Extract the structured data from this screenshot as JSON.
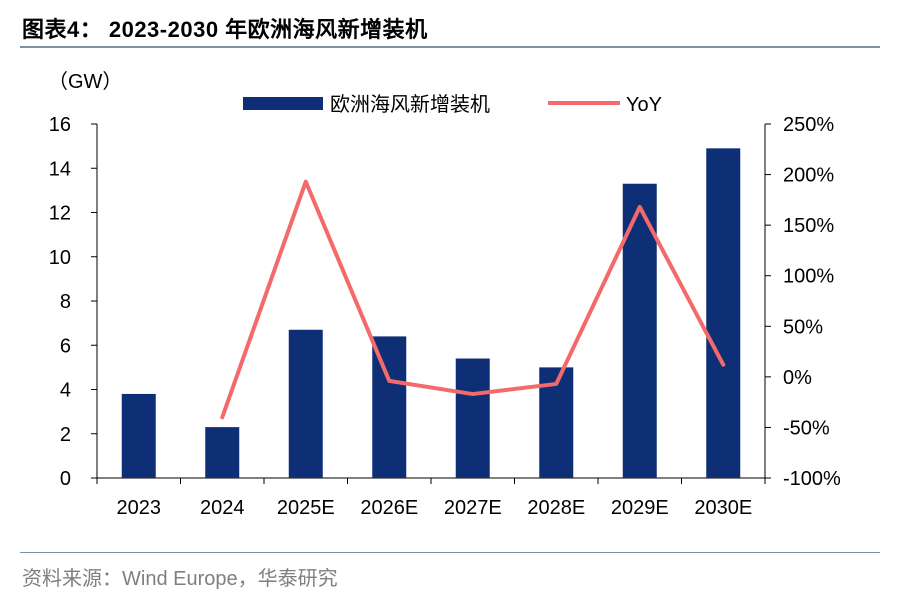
{
  "title": "图表4： 2023-2030 年欧洲海风新增装机",
  "source": "资料来源：Wind Europe，华泰研究",
  "colors": {
    "bar": "#0e2f75",
    "line": "#f46a6a",
    "rule": "#7f8fa8",
    "source_text": "#7f7f7f"
  },
  "chart_data": {
    "type": "bar",
    "categories": [
      "2023",
      "2024",
      "2025E",
      "2026E",
      "2027E",
      "2028E",
      "2029E",
      "2030E"
    ],
    "series": [
      {
        "name": "欧洲海风新增装机",
        "type": "bar",
        "axis": "left",
        "values": [
          3.8,
          2.3,
          6.7,
          6.4,
          5.4,
          5.0,
          13.3,
          14.9
        ]
      },
      {
        "name": "YoY",
        "type": "line",
        "axis": "right",
        "values": [
          null,
          -40,
          193,
          -4,
          -17,
          -7,
          168,
          12
        ]
      }
    ],
    "y_left": {
      "unit_label": "（GW）",
      "min": 0,
      "max": 16,
      "ticks": [
        "0",
        "2",
        "4",
        "6",
        "8",
        "10",
        "12",
        "14",
        "16"
      ]
    },
    "y_right": {
      "min": -100,
      "max": 250,
      "ticks": [
        "-100%",
        "-50%",
        "0%",
        "50%",
        "100%",
        "150%",
        "200%",
        "250%"
      ]
    },
    "legend_position": "top",
    "grid": false
  }
}
